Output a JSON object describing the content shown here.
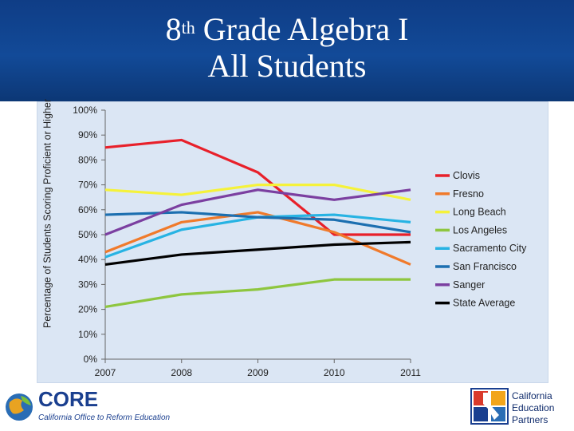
{
  "header": {
    "title_prefix": "8",
    "title_sup": "th",
    "title_line1_rest": " Grade Algebra I",
    "title_line2": "All Students"
  },
  "footer": {
    "core_label": "CORE",
    "core_subtitle": "California Office to Reform Education",
    "partner_label": "California Education Partners"
  },
  "chart_data": {
    "type": "line",
    "ylabel": "Percentage of Students Scoring Proficient or Higher",
    "xlabel": "",
    "x": [
      "2007",
      "2008",
      "2009",
      "2010",
      "2011"
    ],
    "y_ticks": [
      "0%",
      "10%",
      "20%",
      "30%",
      "40%",
      "50%",
      "60%",
      "70%",
      "80%",
      "90%",
      "100%"
    ],
    "ylim": [
      0,
      100
    ],
    "grid": false,
    "legend_position": "right",
    "series": [
      {
        "name": "Clovis",
        "color": "#e8202a",
        "values": [
          85,
          88,
          75,
          50,
          50
        ]
      },
      {
        "name": "Fresno",
        "color": "#f07a2b",
        "values": [
          43,
          55,
          59,
          51,
          38
        ]
      },
      {
        "name": "Long Beach",
        "color": "#f5f23a",
        "values": [
          68,
          66,
          70,
          70,
          64
        ]
      },
      {
        "name": "Los Angeles",
        "color": "#8ec63f",
        "values": [
          21,
          26,
          28,
          32,
          32
        ]
      },
      {
        "name": "Sacramento City",
        "color": "#27b3e3",
        "values": [
          41,
          52,
          57,
          58,
          55
        ]
      },
      {
        "name": "San Francisco",
        "color": "#1c6fb0",
        "values": [
          58,
          59,
          57,
          56,
          51
        ]
      },
      {
        "name": "Sanger",
        "color": "#7b3fa0",
        "values": [
          50,
          62,
          68,
          64,
          68
        ]
      },
      {
        "name": "State Average",
        "color": "#000000",
        "values": [
          38,
          42,
          44,
          46,
          47
        ]
      }
    ]
  }
}
